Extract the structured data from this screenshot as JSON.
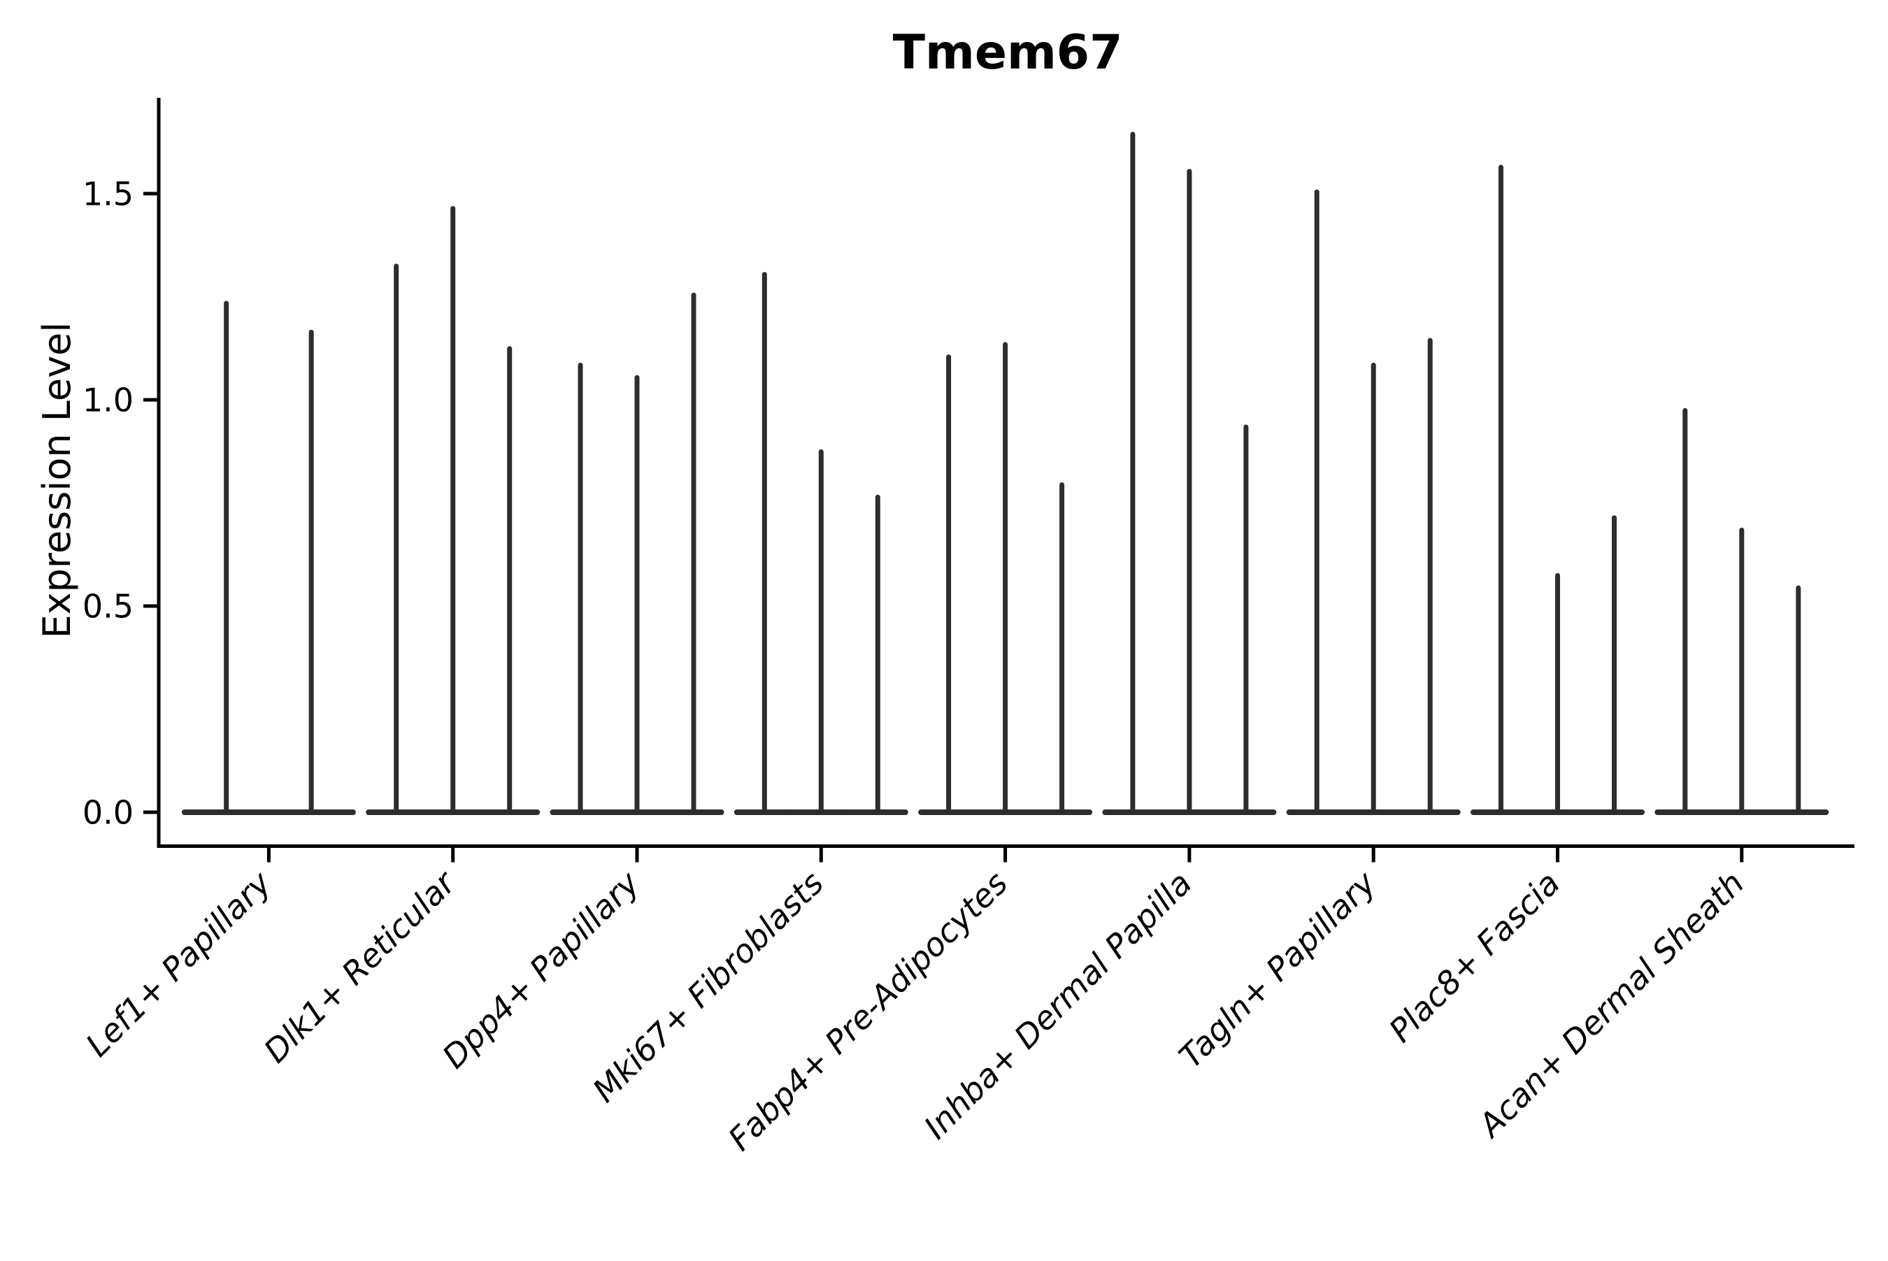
{
  "title": "Tmem67",
  "chart_data": {
    "type": "violin",
    "title": "Tmem67",
    "xlabel": "",
    "ylabel": "Expression Level",
    "ylim": [
      0,
      1.73
    ],
    "yticks": [
      0.0,
      0.5,
      1.0,
      1.5
    ],
    "ytick_labels": [
      "0.0",
      "0.5",
      "1.0",
      "1.5"
    ],
    "x_tick_rotation": 45,
    "grid": false,
    "legend": false,
    "violin_color": "#2d2d2d",
    "axis_color": "#000000",
    "categories": [
      "Lef1+ Papillary",
      "Dlk1+ Reticular",
      "Dpp4+ Papillary",
      "Mki67+ Fibroblasts",
      "Fabp4+ Pre-Adipocytes",
      "Inhba+ Dermal Papilla",
      "Tagln+ Papillary",
      "Plac8+ Fascia",
      "Acan+ Dermal Sheath"
    ],
    "series": [
      {
        "category": "Lef1+ Papillary",
        "violin_maxima": [
          1.24,
          1.17
        ]
      },
      {
        "category": "Dlk1+ Reticular",
        "violin_maxima": [
          1.33,
          1.47,
          1.13
        ]
      },
      {
        "category": "Dpp4+ Papillary",
        "violin_maxima": [
          1.09,
          1.06,
          1.26
        ]
      },
      {
        "category": "Mki67+ Fibroblasts",
        "violin_maxima": [
          1.31,
          0.88,
          0.77
        ]
      },
      {
        "category": "Fabp4+ Pre-Adipocytes",
        "violin_maxima": [
          1.11,
          1.14,
          0.8
        ]
      },
      {
        "category": "Inhba+ Dermal Papilla",
        "violin_maxima": [
          1.65,
          1.56,
          0.94
        ]
      },
      {
        "category": "Tagln+ Papillary",
        "violin_maxima": [
          1.51,
          1.09,
          1.15
        ]
      },
      {
        "category": "Plac8+ Fascia",
        "violin_maxima": [
          1.57,
          0.58,
          0.72
        ]
      },
      {
        "category": "Acan+ Dermal Sheath",
        "violin_maxima": [
          0.98,
          0.69,
          0.55
        ]
      }
    ],
    "violin_baseline_value": 0.0
  }
}
